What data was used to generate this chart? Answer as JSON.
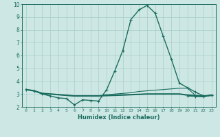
{
  "xlabel": "Humidex (Indice chaleur)",
  "xlim": [
    -0.5,
    23.5
  ],
  "ylim": [
    2,
    10
  ],
  "xticks": [
    0,
    1,
    2,
    3,
    4,
    5,
    6,
    7,
    8,
    9,
    10,
    11,
    12,
    13,
    14,
    15,
    16,
    17,
    18,
    19,
    20,
    21,
    22,
    23
  ],
  "yticks": [
    2,
    3,
    4,
    5,
    6,
    7,
    8,
    9,
    10
  ],
  "bg_color": "#cde8e4",
  "line_color": "#1a6b5e",
  "grid_color": "#aaccc7",
  "series": [
    {
      "x": [
        0,
        1,
        2,
        3,
        4,
        5,
        6,
        7,
        8,
        9,
        10,
        11,
        12,
        13,
        14,
        15,
        16,
        17,
        18,
        19,
        20,
        21,
        22,
        23
      ],
      "y": [
        3.35,
        3.25,
        3.0,
        2.85,
        2.7,
        2.65,
        2.15,
        2.55,
        2.5,
        2.45,
        3.35,
        4.8,
        6.4,
        8.8,
        9.55,
        9.9,
        9.3,
        7.5,
        5.75,
        3.85,
        3.5,
        3.15,
        2.85,
        2.9
      ],
      "marker": "+",
      "lw": 1.0
    },
    {
      "x": [
        0,
        1,
        2,
        3,
        4,
        5,
        6,
        7,
        8,
        9,
        10,
        11,
        12,
        13,
        14,
        15,
        16,
        17,
        18,
        19,
        20,
        21,
        22,
        23
      ],
      "y": [
        3.35,
        3.25,
        3.05,
        3.0,
        2.95,
        2.9,
        2.85,
        2.85,
        2.85,
        2.85,
        2.95,
        3.0,
        3.05,
        3.1,
        3.2,
        3.25,
        3.3,
        3.35,
        3.4,
        3.45,
        3.45,
        2.9,
        2.85,
        2.9
      ],
      "marker": null,
      "lw": 0.8
    },
    {
      "x": [
        0,
        1,
        2,
        3,
        4,
        5,
        6,
        7,
        8,
        9,
        10,
        11,
        12,
        13,
        14,
        15,
        16,
        17,
        18,
        19,
        20,
        21,
        22,
        23
      ],
      "y": [
        3.35,
        3.25,
        3.05,
        3.0,
        2.95,
        2.9,
        2.85,
        2.85,
        2.85,
        2.85,
        2.88,
        2.9,
        2.92,
        2.95,
        2.97,
        3.0,
        3.0,
        3.0,
        3.0,
        3.0,
        2.92,
        2.87,
        2.83,
        2.9
      ],
      "marker": null,
      "lw": 1.5
    },
    {
      "x": [
        20,
        21,
        22,
        23
      ],
      "y": [
        2.85,
        2.8,
        2.78,
        2.9
      ],
      "marker": "+",
      "lw": 0.8
    }
  ]
}
